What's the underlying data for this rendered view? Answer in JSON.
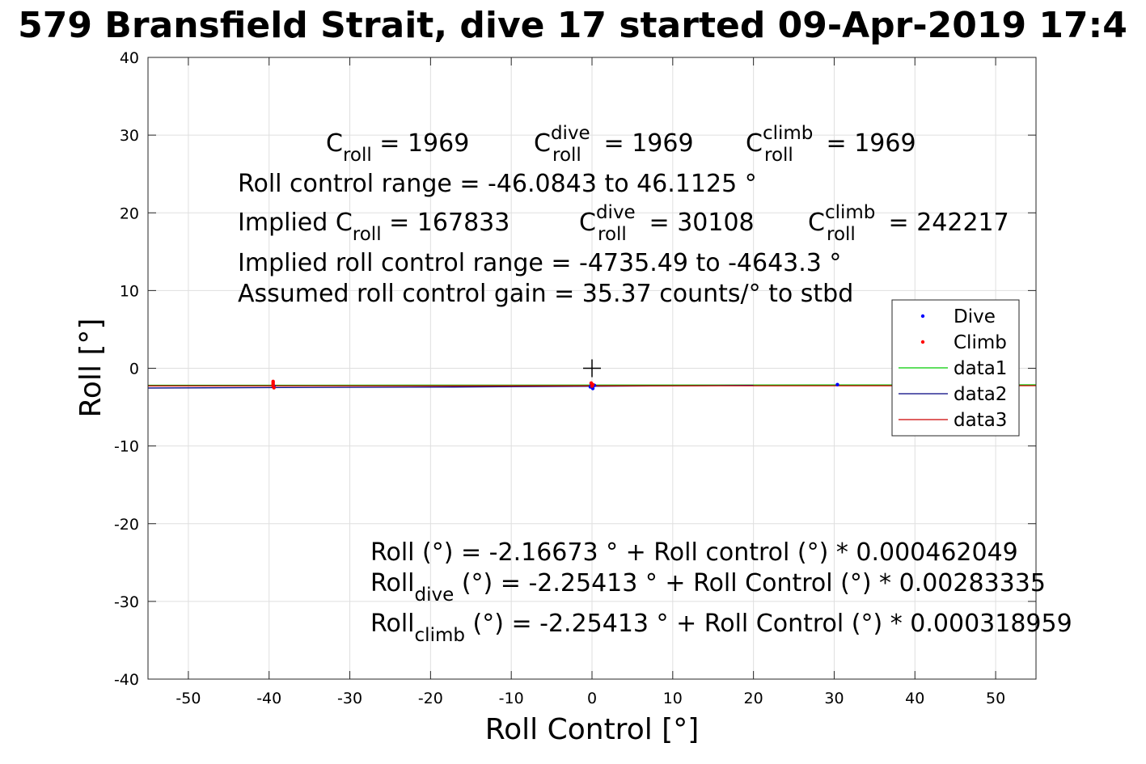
{
  "chart_data": {
    "type": "scatter",
    "title": "579 Bransfield Strait, dive 17 started 09-Apr-2019 17:4",
    "xlabel": "Roll Control [°]",
    "ylabel": "Roll [°]",
    "xlim": [
      -55,
      55
    ],
    "ylim": [
      -40,
      40
    ],
    "xticks": [
      -50,
      -40,
      -30,
      -20,
      -10,
      0,
      10,
      20,
      30,
      40,
      50
    ],
    "yticks": [
      -40,
      -30,
      -20,
      -10,
      0,
      10,
      20,
      30,
      40
    ],
    "grid": true,
    "legend_position": "right",
    "series": [
      {
        "name": "Dive",
        "kind": "points",
        "color": "#0000ff",
        "points": [
          [
            -39.4,
            -2.3
          ],
          [
            -0.2,
            -2.4
          ],
          [
            0.1,
            -2.6
          ],
          [
            0.3,
            -2.2
          ],
          [
            -0.1,
            -2.0
          ],
          [
            30.4,
            -2.1
          ]
        ]
      },
      {
        "name": "Climb",
        "kind": "points",
        "color": "#ff0000",
        "points": [
          [
            -39.5,
            -1.7
          ],
          [
            -39.5,
            -1.9
          ],
          [
            -39.5,
            -2.1
          ],
          [
            -39.5,
            -2.3
          ],
          [
            -39.4,
            -2.5
          ],
          [
            -0.1,
            -1.9
          ],
          [
            0.1,
            -2.1
          ],
          [
            0.0,
            -2.3
          ]
        ]
      },
      {
        "name": "data1",
        "kind": "line",
        "color": "#00cc00",
        "x": [
          -55,
          55
        ],
        "y": [
          -2.19,
          -2.14
        ]
      },
      {
        "name": "data2",
        "kind": "line",
        "color": "#00007f",
        "x": [
          -55,
          -17,
          20
        ],
        "y": [
          -2.54,
          -2.41,
          -2.2
        ]
      },
      {
        "name": "data3",
        "kind": "line",
        "color": "#cc0000",
        "x": [
          -55,
          55
        ],
        "y": [
          -2.27,
          -2.24
        ]
      }
    ],
    "marker": {
      "symbol": "+",
      "x": 0,
      "y": 0
    },
    "annotations": {
      "c_roll": {
        "lead": "C",
        "sub": "roll",
        "tail": " = 1969"
      },
      "c_roll_dive": {
        "lead": "C",
        "sub": "roll",
        "sup": "dive",
        "tail": " = 1969"
      },
      "c_roll_climb": {
        "lead": "C",
        "sub": "roll",
        "sup": "climb",
        "tail": " = 1969"
      },
      "range": "Roll control range = -46.0843 to 46.1125 °",
      "implied_c_roll": {
        "lead": "Implied C",
        "sub": "roll",
        "tail": " = 167833"
      },
      "implied_c_dive": {
        "lead": "C",
        "sub": "roll",
        "sup": "dive",
        "tail": " = 30108"
      },
      "implied_c_climb": {
        "lead": "C",
        "sub": "roll",
        "sup": "climb",
        "tail": " = 242217"
      },
      "implied_range": "Implied roll control range = -4735.49 to -4643.3 °",
      "gain": "Assumed roll control gain = 35.37 counts/° to stbd",
      "fit": "Roll (°) = -2.16673 ° + Roll control (°) * 0.000462049",
      "fit_dive": {
        "lead": "Roll",
        "sub": "dive",
        "tail": " (°) = -2.25413 ° + Roll Control (°) * 0.00283335"
      },
      "fit_climb": {
        "lead": "Roll",
        "sub": "climb",
        "tail": " (°) = -2.25413 ° + Roll Control (°) * 0.000318959"
      }
    }
  }
}
